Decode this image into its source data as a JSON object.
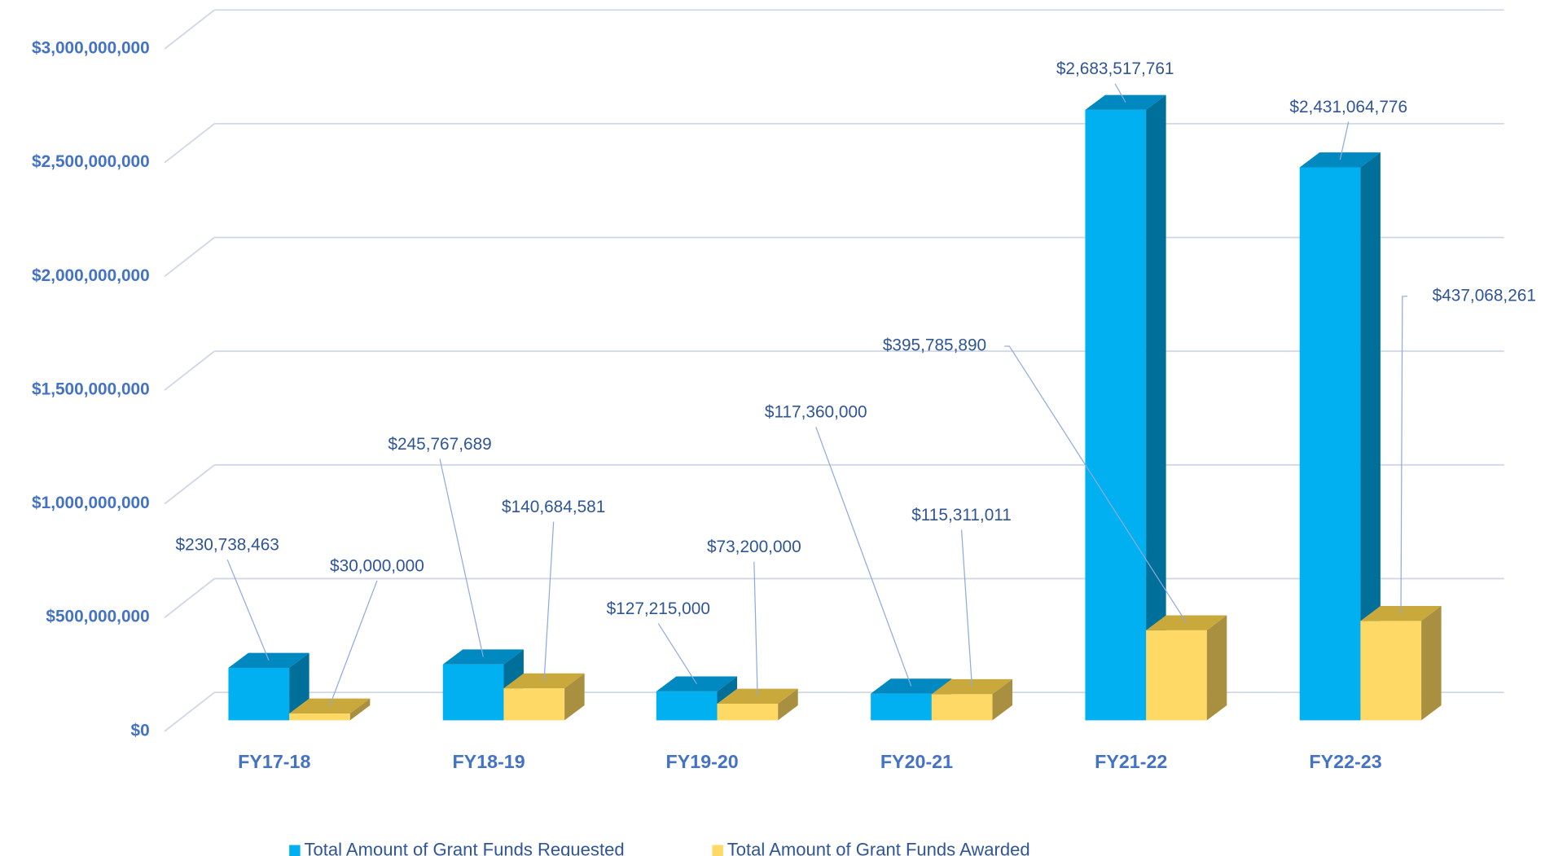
{
  "chart_data": {
    "type": "bar3d",
    "categories": [
      "FY17-18",
      "FY18-19",
      "FY19-20",
      "FY20-21",
      "FY21-22",
      "FY22-23"
    ],
    "series": [
      {
        "name": "Total Amount of Grant Funds Requested",
        "color": "#00b0f0",
        "values": [
          230738463,
          245767689,
          127215000,
          117360000,
          2683517761,
          2431064776
        ],
        "value_labels": [
          "$230,738,463",
          "$245,767,689",
          "$127,215,000",
          "$117,360,000",
          "$2,683,517,761",
          "$2,431,064,776"
        ]
      },
      {
        "name": "Total Amount of Grant Funds Awarded",
        "color": "#ffd966",
        "values": [
          30000000,
          140684581,
          73200000,
          115311011,
          395785890,
          437068261
        ],
        "value_labels": [
          "$30,000,000",
          "$140,684,581",
          "$73,200,000",
          "$115,311,011",
          "$395,785,890",
          "$437,068,261"
        ]
      }
    ],
    "ylim": [
      0,
      3000000000
    ],
    "yticks": [
      {
        "value": 0,
        "label": "$0"
      },
      {
        "value": 500000000,
        "label": "$500,000,000"
      },
      {
        "value": 1000000000,
        "label": "$1,000,000,000"
      },
      {
        "value": 1500000000,
        "label": "$1,500,000,000"
      },
      {
        "value": 2000000000,
        "label": "$2,000,000,000"
      },
      {
        "value": 2500000000,
        "label": "$2,500,000,000"
      },
      {
        "value": 3000000000,
        "label": "$3,000,000,000"
      }
    ],
    "grid": true
  }
}
